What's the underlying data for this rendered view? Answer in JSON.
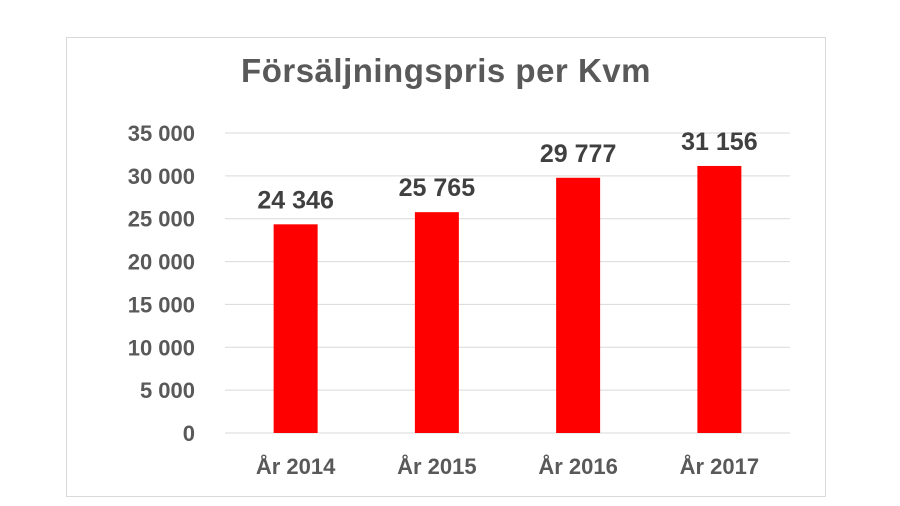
{
  "chart_data": {
    "type": "bar",
    "title": "Försäljningspris per Kvm",
    "categories": [
      "År 2014",
      "År 2015",
      "År 2016",
      "År 2017"
    ],
    "values": [
      24346,
      25765,
      29777,
      31156
    ],
    "data_labels": [
      "24 346",
      "25 765",
      "29 777",
      "31 156"
    ],
    "ylim": [
      0,
      35000
    ],
    "yticks": [
      0,
      5000,
      10000,
      15000,
      20000,
      25000,
      30000,
      35000
    ],
    "ytick_labels": [
      "0",
      "5 000",
      "10 000",
      "15 000",
      "20 000",
      "25 000",
      "30 000",
      "35 000"
    ],
    "bar_color": "#ff0000",
    "grid": true,
    "legend": "none"
  }
}
